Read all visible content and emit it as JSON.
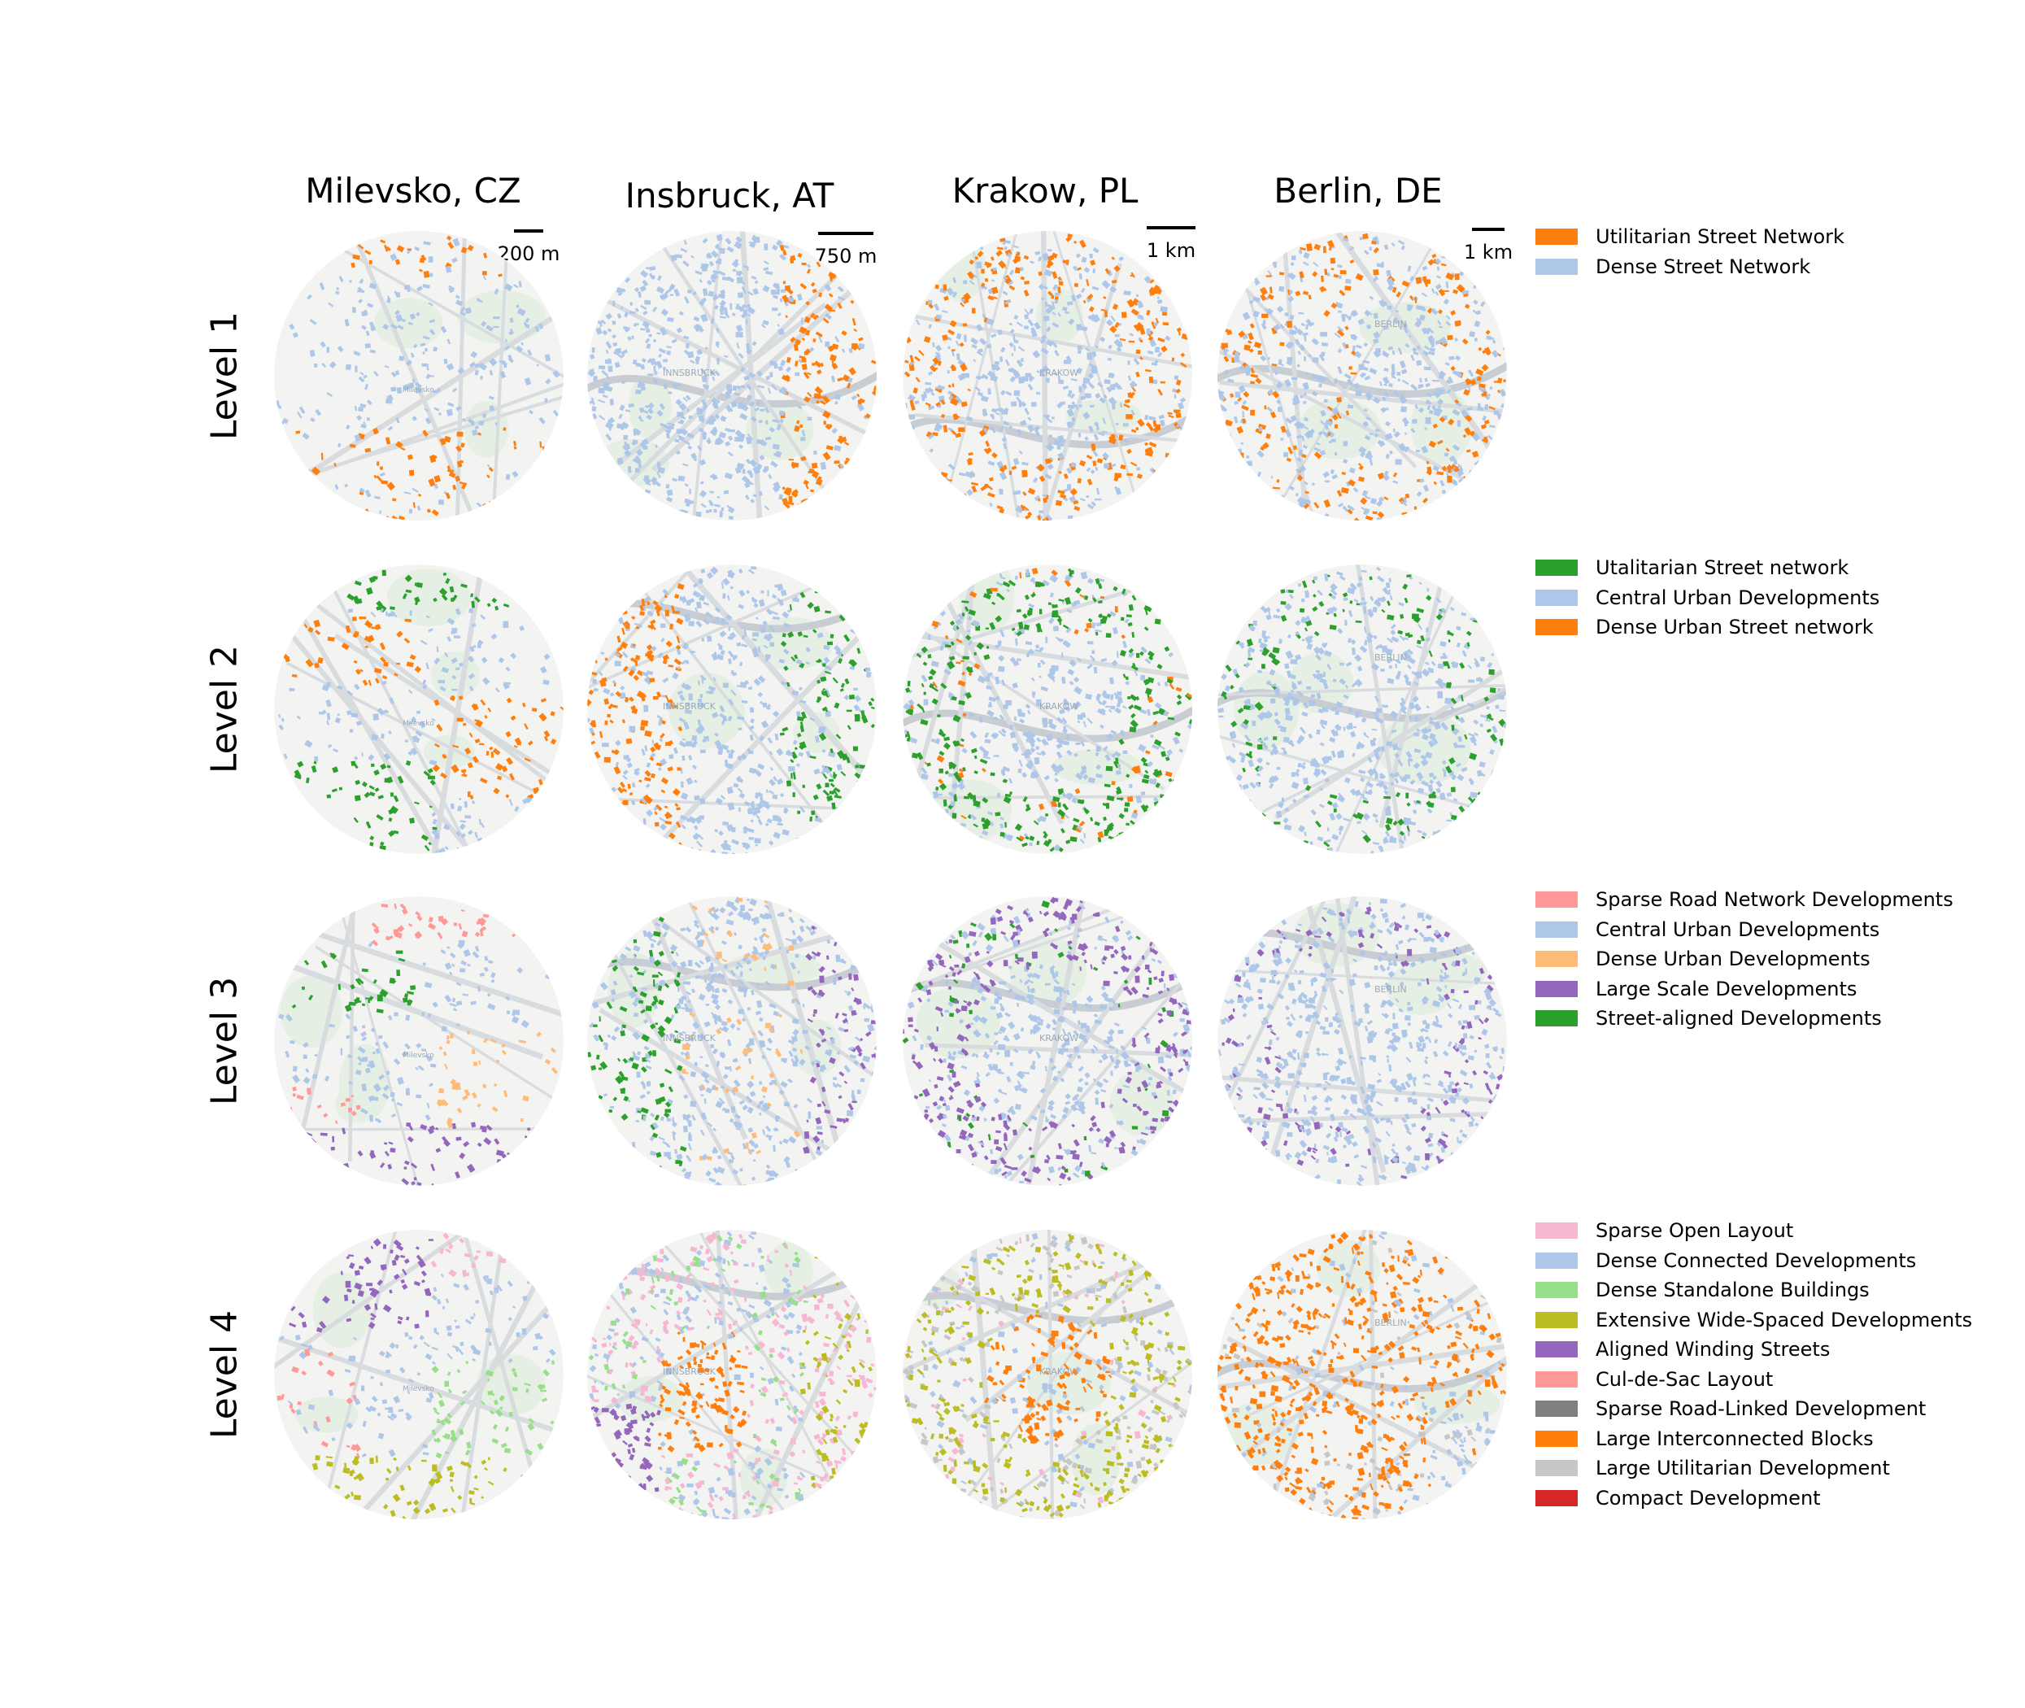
{
  "cities": [
    {
      "name": "Milevsko, CZ",
      "scale_label": "200 m",
      "place_label": "Milevsko"
    },
    {
      "name": "Insbruck, AT",
      "scale_label": "750 m",
      "place_label": "INNSBRUCK"
    },
    {
      "name": "Krakow, PL",
      "scale_label": "1 km",
      "place_label": "KRAKOW"
    },
    {
      "name": "Berlin, DE",
      "scale_label": "1 km",
      "place_label": "BERLIN"
    }
  ],
  "levels": [
    {
      "label": "Level 1",
      "legend": [
        {
          "label": "Utilitarian Street Network",
          "color": "#ff7f0e"
        },
        {
          "label": "Dense Street Network",
          "color": "#aec7e8"
        }
      ]
    },
    {
      "label": "Level 2",
      "legend": [
        {
          "label": "Utalitarian Street network",
          "color": "#2ca02c"
        },
        {
          "label": "Central Urban Developments",
          "color": "#aec7e8"
        },
        {
          "label": "Dense Urban Street network",
          "color": "#ff7f0e"
        }
      ]
    },
    {
      "label": "Level 3",
      "legend": [
        {
          "label": "Sparse Road Network Developments",
          "color": "#ff9896"
        },
        {
          "label": "Central Urban Developments",
          "color": "#aec7e8"
        },
        {
          "label": "Dense Urban Developments",
          "color": "#ffbb78"
        },
        {
          "label": "Large Scale Developments",
          "color": "#9467bd"
        },
        {
          "label": "Street-aligned Developments",
          "color": "#2ca02c"
        }
      ]
    },
    {
      "label": "Level 4",
      "legend": [
        {
          "label": "Sparse Open Layout",
          "color": "#f7b6d2"
        },
        {
          "label": "Dense Connected Developments",
          "color": "#aec7e8"
        },
        {
          "label": "Dense Standalone Buildings",
          "color": "#98df8a"
        },
        {
          "label": "Extensive Wide-Spaced Developments",
          "color": "#bcbd22"
        },
        {
          "label": "Aligned Winding Streets",
          "color": "#9467bd"
        },
        {
          "label": "Cul-de-Sac Layout",
          "color": "#ff9896"
        },
        {
          "label": "Sparse Road-Linked Development",
          "color": "#7f7f7f"
        },
        {
          "label": "Large Interconnected Blocks",
          "color": "#ff7f0e"
        },
        {
          "label": "Large Utilitarian Development",
          "color": "#c7c7c7"
        },
        {
          "label": "Compact Development",
          "color": "#d62728"
        }
      ]
    }
  ],
  "map_colors": {
    "background": "#f3f4f2",
    "roads": "#d9dcdf",
    "river": "#c8ccd3",
    "park": "#e6efe4"
  }
}
